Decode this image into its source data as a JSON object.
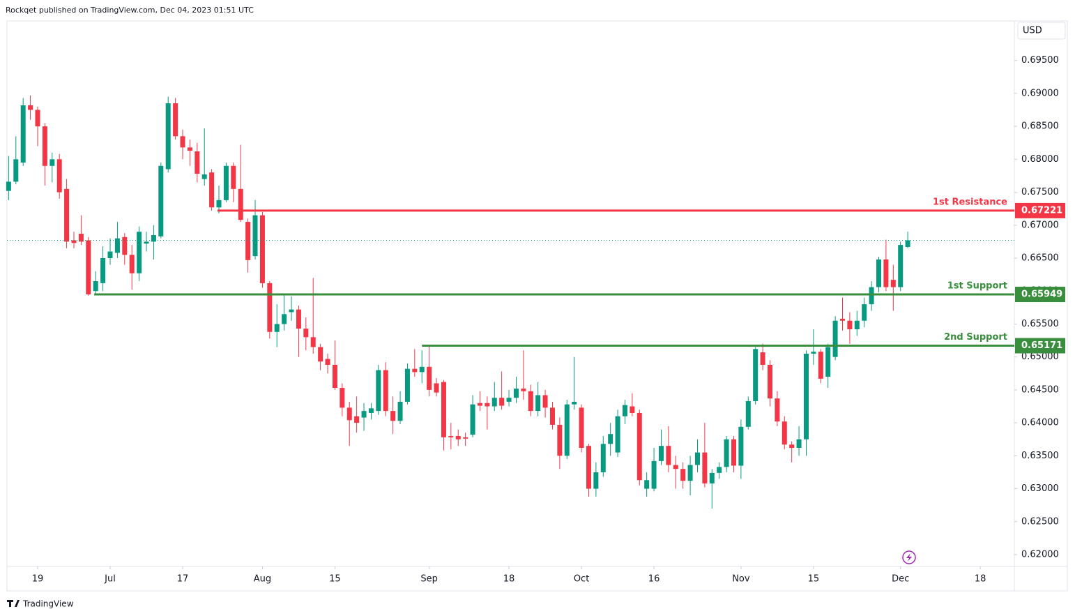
{
  "header": "Rockqet published on TradingView.com, Dec 04, 2023 01:51 UTC",
  "footer_brand": "TradingView",
  "chart_data": {
    "type": "candlestick",
    "currency": "USD",
    "up_color": "#089981",
    "down_color": "#f23645",
    "open": [
      0.6752,
      0.6766,
      0.6795,
      0.6882,
      0.6875,
      0.685,
      0.679,
      0.68,
      0.6755,
      0.6677,
      0.6687,
      0.6677,
      0.66,
      0.6612,
      0.665,
      0.6658,
      0.6682,
      0.6655,
      0.6627,
      0.6672,
      0.6675,
      0.6683,
      0.6785,
      0.6885,
      0.6835,
      0.6818,
      0.6812,
      0.677,
      0.678,
      0.6727,
      0.6738,
      0.679,
      0.6755,
      0.6705,
      0.6653,
      0.6715,
      0.6612,
      0.6538,
      0.655,
      0.6568,
      0.6572,
      0.6543,
      0.653,
      0.6515,
      0.6497,
      0.6488,
      0.6453,
      0.6423,
      0.641,
      0.6408,
      0.6415,
      0.6418,
      0.648,
      0.6418,
      0.6403,
      0.6432,
      0.6482,
      0.6477,
      0.6485,
      0.646,
      0.6462,
      0.638,
      0.638,
      0.6378,
      0.6382,
      0.643,
      0.643,
      0.6425,
      0.6438,
      0.6432,
      0.6438,
      0.6452,
      0.6448,
      0.6418,
      0.6442,
      0.6423,
      0.6397,
      0.635,
      0.6428,
      0.6423,
      0.6365,
      0.63,
      0.6325,
      0.6368,
      0.6355,
      0.641,
      0.6425,
      0.6415,
      0.63,
      0.63,
      0.6342,
      0.6365,
      0.6336,
      0.633,
      0.6312,
      0.6336,
      0.6355,
      0.6308,
      0.6324,
      0.6333,
      0.6375,
      0.6335,
      0.6394,
      0.6433,
      0.6507,
      0.6488,
      0.6437,
      0.6402,
      0.6367,
      0.6362,
      0.6375,
      0.6505,
      0.6508,
      0.647,
      0.65,
      0.6558,
      0.6555,
      0.6542,
      0.6555,
      0.658,
      0.6606,
      0.6648,
      0.6617,
      0.6606,
      0.6667
    ],
    "high": [
      0.6805,
      0.6835,
      0.6893,
      0.6897,
      0.688,
      0.6855,
      0.681,
      0.6808,
      0.677,
      0.669,
      0.6715,
      0.6682,
      0.663,
      0.6668,
      0.668,
      0.6705,
      0.6688,
      0.667,
      0.6698,
      0.669,
      0.67,
      0.6795,
      0.6895,
      0.6893,
      0.6845,
      0.683,
      0.6825,
      0.6847,
      0.6785,
      0.676,
      0.6795,
      0.6795,
      0.6822,
      0.671,
      0.6738,
      0.672,
      0.6615,
      0.658,
      0.6595,
      0.6592,
      0.6578,
      0.656,
      0.662,
      0.652,
      0.6505,
      0.6525,
      0.646,
      0.6432,
      0.644,
      0.643,
      0.643,
      0.6488,
      0.6492,
      0.644,
      0.6448,
      0.649,
      0.6512,
      0.651,
      0.6518,
      0.6468,
      0.6465,
      0.64,
      0.639,
      0.6385,
      0.6442,
      0.6448,
      0.644,
      0.6462,
      0.6478,
      0.645,
      0.647,
      0.651,
      0.6458,
      0.6462,
      0.645,
      0.6432,
      0.6408,
      0.6435,
      0.65,
      0.6428,
      0.6368,
      0.634,
      0.638,
      0.64,
      0.642,
      0.6435,
      0.6445,
      0.642,
      0.6325,
      0.6362,
      0.639,
      0.6395,
      0.635,
      0.634,
      0.635,
      0.6375,
      0.64,
      0.633,
      0.634,
      0.638,
      0.638,
      0.6405,
      0.644,
      0.6515,
      0.652,
      0.6495,
      0.6448,
      0.641,
      0.6372,
      0.6395,
      0.651,
      0.6542,
      0.6512,
      0.652,
      0.6562,
      0.659,
      0.6568,
      0.657,
      0.659,
      0.6615,
      0.6652,
      0.6678,
      0.664,
      0.6675,
      0.669
    ],
    "low": [
      0.6738,
      0.6762,
      0.679,
      0.686,
      0.682,
      0.676,
      0.6765,
      0.674,
      0.6665,
      0.6665,
      0.667,
      0.6593,
      0.6595,
      0.66,
      0.664,
      0.665,
      0.664,
      0.6602,
      0.6615,
      0.666,
      0.6648,
      0.668,
      0.678,
      0.683,
      0.68,
      0.679,
      0.6765,
      0.676,
      0.6722,
      0.6718,
      0.6735,
      0.6735,
      0.6705,
      0.6628,
      0.6648,
      0.6605,
      0.6528,
      0.6515,
      0.654,
      0.6555,
      0.65,
      0.651,
      0.6505,
      0.648,
      0.6475,
      0.645,
      0.641,
      0.6365,
      0.6385,
      0.6388,
      0.6405,
      0.6412,
      0.641,
      0.6383,
      0.6398,
      0.6428,
      0.647,
      0.646,
      0.644,
      0.644,
      0.6358,
      0.636,
      0.6365,
      0.6365,
      0.6378,
      0.6418,
      0.639,
      0.6418,
      0.642,
      0.6425,
      0.643,
      0.6435,
      0.641,
      0.641,
      0.6408,
      0.639,
      0.633,
      0.6345,
      0.642,
      0.6355,
      0.6288,
      0.6288,
      0.6318,
      0.635,
      0.6348,
      0.6398,
      0.641,
      0.6305,
      0.6288,
      0.6296,
      0.6336,
      0.6325,
      0.63,
      0.63,
      0.629,
      0.6325,
      0.6302,
      0.627,
      0.6315,
      0.6325,
      0.6325,
      0.6315,
      0.639,
      0.6428,
      0.648,
      0.6425,
      0.6395,
      0.636,
      0.634,
      0.635,
      0.635,
      0.6488,
      0.646,
      0.6453,
      0.6495,
      0.654,
      0.652,
      0.6532,
      0.6545,
      0.657,
      0.6598,
      0.66,
      0.657,
      0.66,
      0.6665
    ],
    "close": [
      0.6766,
      0.68,
      0.6882,
      0.6875,
      0.685,
      0.679,
      0.68,
      0.675,
      0.6675,
      0.6673,
      0.6675,
      0.6595,
      0.6615,
      0.665,
      0.666,
      0.668,
      0.6655,
      0.6627,
      0.669,
      0.6675,
      0.6685,
      0.679,
      0.6885,
      0.6835,
      0.6818,
      0.6813,
      0.6778,
      0.6777,
      0.6727,
      0.6738,
      0.679,
      0.6755,
      0.6708,
      0.6647,
      0.6715,
      0.6612,
      0.6538,
      0.655,
      0.6565,
      0.6572,
      0.6543,
      0.653,
      0.6515,
      0.6493,
      0.6488,
      0.6453,
      0.6423,
      0.6404,
      0.64,
      0.6418,
      0.6422,
      0.648,
      0.6418,
      0.6403,
      0.6432,
      0.6482,
      0.6477,
      0.6485,
      0.645,
      0.6446,
      0.6378,
      0.6378,
      0.6375,
      0.6376,
      0.6428,
      0.6426,
      0.6425,
      0.6438,
      0.6426,
      0.6438,
      0.6452,
      0.6448,
      0.6418,
      0.6442,
      0.6423,
      0.6397,
      0.635,
      0.6428,
      0.6432,
      0.6362,
      0.63,
      0.6325,
      0.6368,
      0.6383,
      0.641,
      0.6427,
      0.6415,
      0.6313,
      0.6313,
      0.6342,
      0.6365,
      0.6336,
      0.633,
      0.6312,
      0.6336,
      0.6355,
      0.6308,
      0.6324,
      0.6333,
      0.6375,
      0.6335,
      0.6394,
      0.6433,
      0.6512,
      0.6488,
      0.6437,
      0.6402,
      0.6367,
      0.6362,
      0.6375,
      0.6505,
      0.6508,
      0.6467,
      0.6515,
      0.6555,
      0.6555,
      0.6542,
      0.6555,
      0.658,
      0.6606,
      0.6648,
      0.6606,
      0.6606,
      0.667,
      0.6677
    ],
    "xlim": [
      -0.23,
      138.7
    ],
    "xticks": [
      {
        "value": 4,
        "label": "19"
      },
      {
        "value": 14,
        "label": "Jul"
      },
      {
        "value": 24,
        "label": "17"
      },
      {
        "value": 35,
        "label": "Aug"
      },
      {
        "value": 45,
        "label": "15"
      },
      {
        "value": 58,
        "label": "Sep"
      },
      {
        "value": 69,
        "label": "18"
      },
      {
        "value": 79,
        "label": "Oct"
      },
      {
        "value": 89,
        "label": "16"
      },
      {
        "value": 101,
        "label": "Nov"
      },
      {
        "value": 111,
        "label": "15"
      },
      {
        "value": 123,
        "label": "Dec"
      },
      {
        "value": 134,
        "label": "18"
      }
    ],
    "ylim": [
      0.6182,
      0.701
    ],
    "yticks": [
      {
        "value": 0.695,
        "label": "0.69500"
      },
      {
        "value": 0.69,
        "label": "0.69000"
      },
      {
        "value": 0.685,
        "label": "0.68500"
      },
      {
        "value": 0.68,
        "label": "0.68000"
      },
      {
        "value": 0.675,
        "label": "0.67500"
      },
      {
        "value": 0.67,
        "label": "0.67000"
      },
      {
        "value": 0.665,
        "label": "0.66500"
      },
      {
        "value": 0.66,
        "label": "0.66000"
      },
      {
        "value": 0.655,
        "label": "0.65500"
      },
      {
        "value": 0.65,
        "label": "0.65000"
      },
      {
        "value": 0.645,
        "label": "0.64500"
      },
      {
        "value": 0.64,
        "label": "0.64000"
      },
      {
        "value": 0.635,
        "label": "0.63500"
      },
      {
        "value": 0.63,
        "label": "0.63000"
      },
      {
        "value": 0.625,
        "label": "0.62500"
      },
      {
        "value": 0.62,
        "label": "0.62000"
      }
    ],
    "grid": false,
    "levels": [
      {
        "name": "1st Resistance",
        "value": 0.67221,
        "color": "#f23645",
        "from": 28.8
      },
      {
        "name": "1st Support",
        "value": 0.65949,
        "color": "#388e3c",
        "from": 11.8
      },
      {
        "name": "2nd Support",
        "value": 0.65171,
        "color": "#388e3c",
        "from": 57
      }
    ]
  }
}
